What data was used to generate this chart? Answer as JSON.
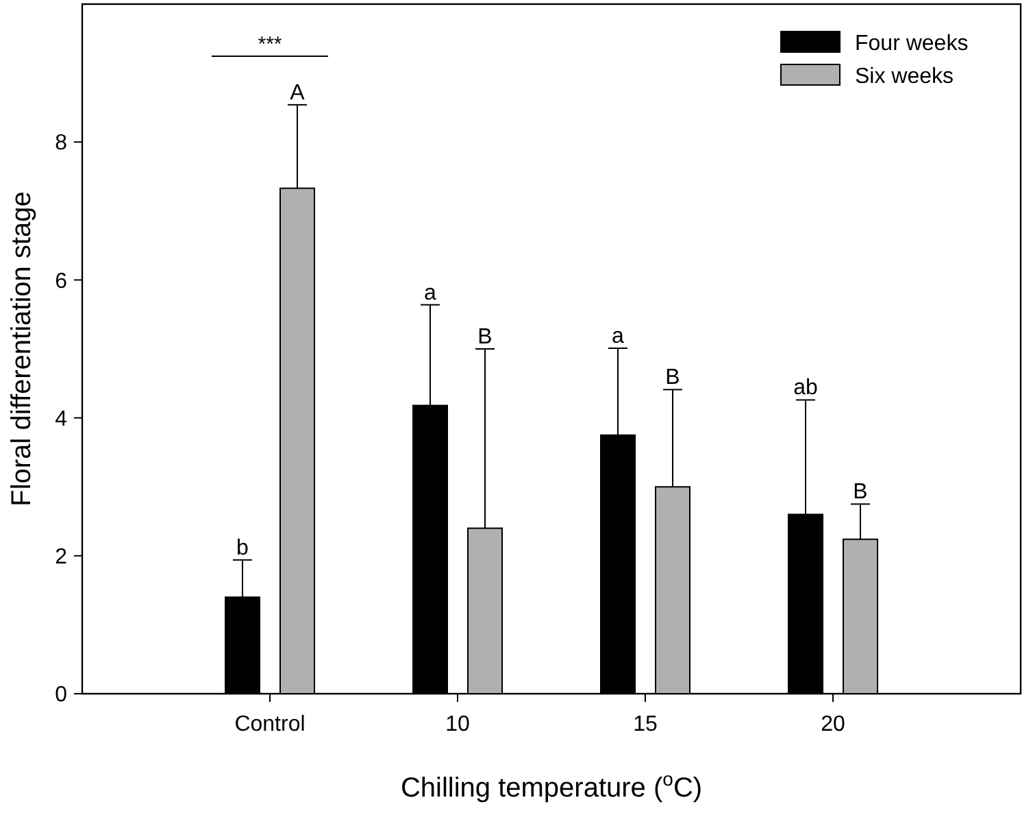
{
  "chart_data": {
    "type": "bar",
    "xlabel": "Chilling temperature ($^{o}$C)",
    "ylabel": "Floral differentiation stage",
    "categories": [
      "Control",
      "10",
      "15",
      "20"
    ],
    "series": [
      {
        "name": "Four weeks",
        "color": "#000000",
        "values": [
          1.4,
          4.18,
          3.75,
          2.6
        ],
        "errors": [
          [
            1.4,
            1.94
          ],
          [
            4.18,
            5.64
          ],
          [
            3.75,
            5.01
          ],
          [
            2.6,
            4.26
          ]
        ]
      },
      {
        "name": "Six weeks",
        "color": "#b0b0b0",
        "values": [
          7.33,
          2.4,
          3.0,
          2.24
        ],
        "errors": [
          [
            7.33,
            8.54
          ],
          [
            2.4,
            5.0
          ],
          [
            3.0,
            4.41
          ],
          [
            2.24,
            2.75
          ]
        ]
      }
    ],
    "ylim": [
      0,
      10
    ],
    "yticks": [
      0,
      2,
      4,
      6,
      8
    ],
    "grid": false,
    "legend": "top right",
    "annotations": [
      "b",
      "A",
      "a",
      "B",
      "a",
      "B",
      "ab",
      "B",
      "***"
    ]
  }
}
